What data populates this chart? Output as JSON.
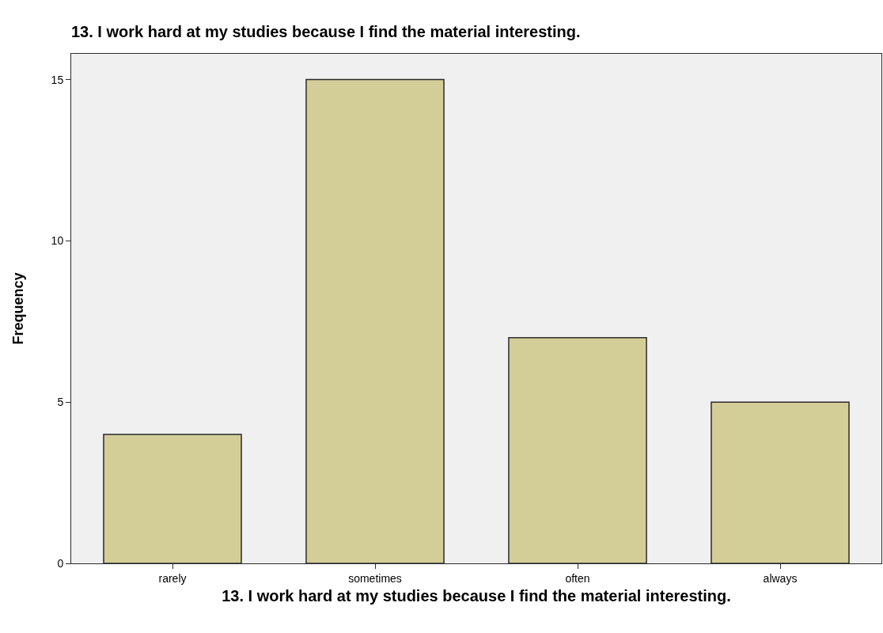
{
  "chart_data": {
    "type": "bar",
    "title": "13. I work hard at my studies because I find the material interesting.",
    "xlabel": "13. I work hard at my studies because I find the material interesting.",
    "ylabel": "Frequency",
    "categories": [
      "rarely",
      "sometimes",
      "often",
      "always"
    ],
    "values": [
      4,
      15,
      7,
      5
    ],
    "color": "#d3ce98",
    "ylim": [
      0,
      15.8
    ],
    "yticks": [
      0,
      5,
      10,
      15
    ],
    "grid": false
  }
}
